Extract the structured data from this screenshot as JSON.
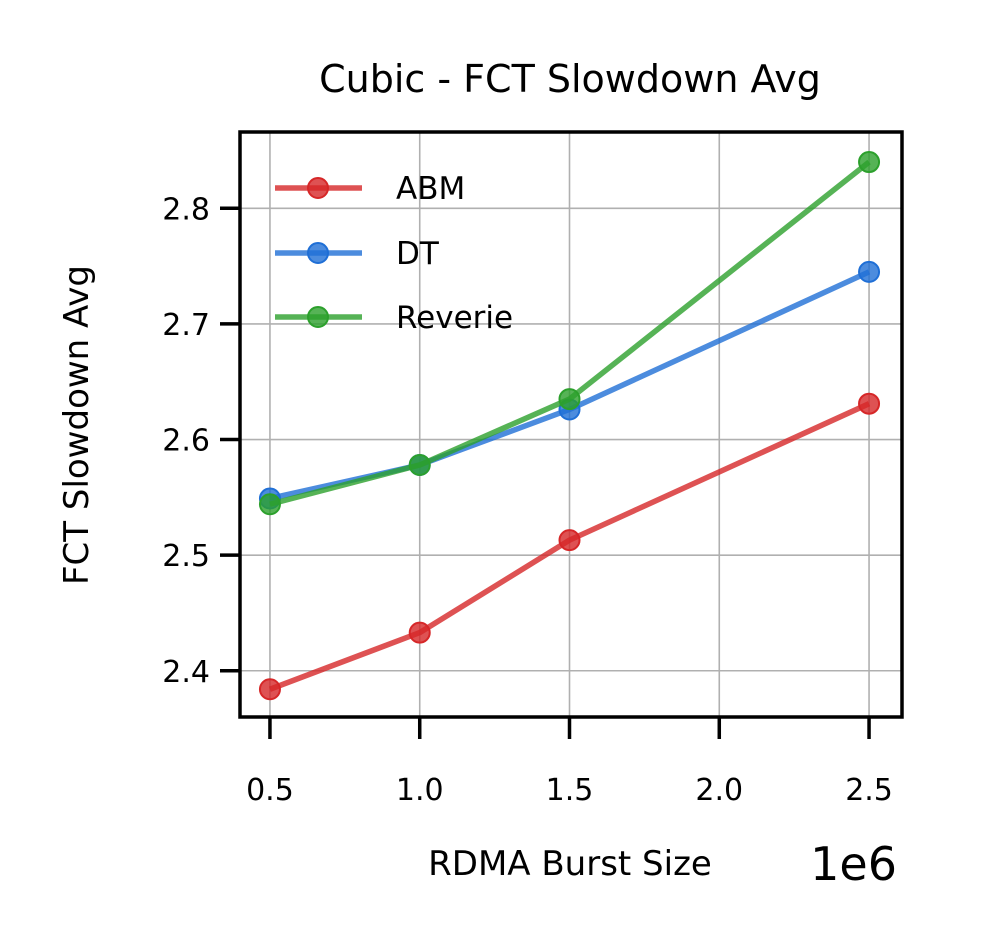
{
  "chart_data": {
    "type": "line",
    "title": "Cubic - FCT Slowdown Avg",
    "xlabel": "RDMA Burst Size",
    "ylabel": "FCT Slowdown Avg",
    "x_offset_label": "1e6",
    "xlim": [
      0.4,
      2.61
    ],
    "ylim": [
      2.36,
      2.866
    ],
    "xticks": [
      0.5,
      1.0,
      1.5,
      2.0,
      2.5
    ],
    "xtick_labels": [
      "0.5",
      "1.0",
      "1.5",
      "2.0",
      "2.5"
    ],
    "yticks": [
      2.4,
      2.5,
      2.6,
      2.7,
      2.8
    ],
    "ytick_labels": [
      "2.4",
      "2.5",
      "2.6",
      "2.7",
      "2.8"
    ],
    "grid": true,
    "legend_position": "upper-left",
    "series": [
      {
        "name": "ABM",
        "color": "#d62728",
        "x": [
          0.5,
          1.0,
          1.5,
          2.5
        ],
        "values": [
          2.384,
          2.433,
          2.513,
          2.631
        ]
      },
      {
        "name": "DT",
        "color": "#1f6fd6",
        "x": [
          0.5,
          1.0,
          1.5,
          2.5
        ],
        "values": [
          2.549,
          2.578,
          2.626,
          2.745
        ]
      },
      {
        "name": "Reverie",
        "color": "#2ca02c",
        "x": [
          0.5,
          1.0,
          1.5,
          2.5
        ],
        "values": [
          2.544,
          2.578,
          2.635,
          2.84
        ]
      }
    ]
  }
}
